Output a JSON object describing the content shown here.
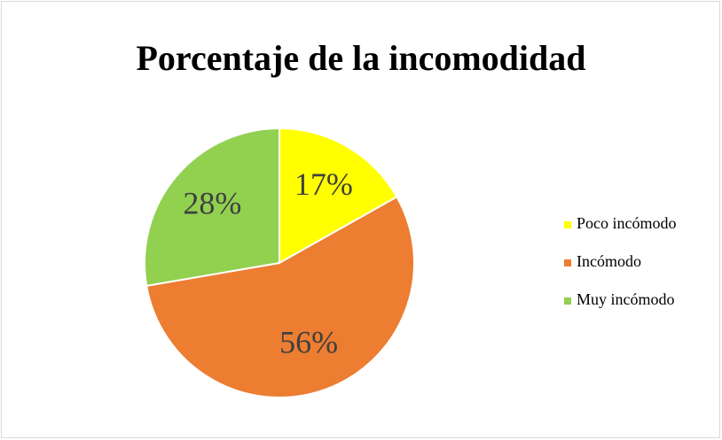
{
  "chart_data": {
    "type": "pie",
    "title": "Porcentaje de la incomodidad",
    "categories": [
      "Poco incómodo",
      "Incómodo",
      "Muy incómodo"
    ],
    "values": [
      17,
      56,
      28
    ],
    "value_labels": [
      "17%",
      "56%",
      "28%"
    ],
    "colors": [
      "#ffff00",
      "#ed7d31",
      "#92d050"
    ],
    "legend": "right"
  }
}
